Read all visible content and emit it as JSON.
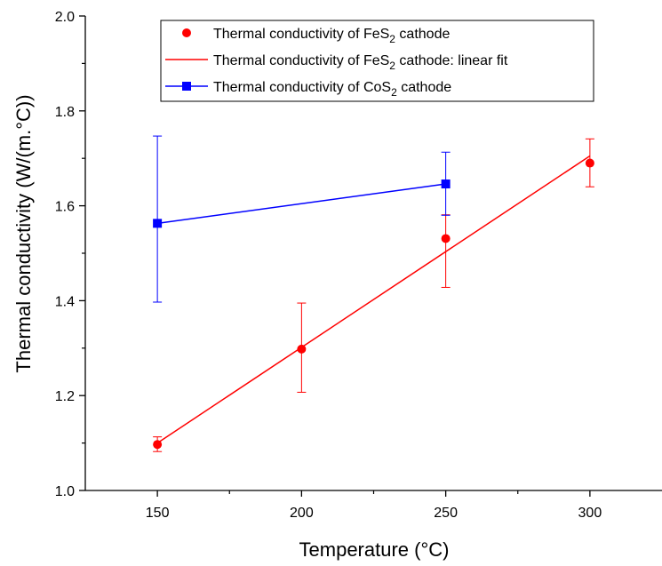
{
  "chart_data": {
    "type": "scatter",
    "xlabel": "Temperature (°C)",
    "ylabel": "Thermal conductivity (W/(m.°C))",
    "xlim": [
      125,
      325
    ],
    "ylim": [
      1.0,
      2.0
    ],
    "x_ticks": [
      "150",
      "200",
      "250",
      "300"
    ],
    "y_ticks": [
      "1.0",
      "1.2",
      "1.4",
      "1.6",
      "1.8",
      "2.0"
    ],
    "grid": false,
    "legend_position": "top",
    "series": [
      {
        "name": "Thermal conductivity of FeS2 cathode",
        "legend": {
          "base": "Thermal conductivity of FeS",
          "sub": "2",
          "suffix": " cathode"
        },
        "style": "marker",
        "marker": "circle",
        "color": "#ff0000",
        "points": [
          {
            "x": 150,
            "y": 1.097,
            "err_low": 1.082,
            "err_high": 1.113
          },
          {
            "x": 200,
            "y": 1.298,
            "err_low": 1.207,
            "err_high": 1.395
          },
          {
            "x": 250,
            "y": 1.531,
            "err_low": 1.428,
            "err_high": 1.581
          },
          {
            "x": 300,
            "y": 1.69,
            "err_low": 1.64,
            "err_high": 1.741
          }
        ]
      },
      {
        "name": "Thermal conductivity of FeS2 cathode: linear fit",
        "legend": {
          "base": "Thermal conductivity of FeS",
          "sub": "2",
          "suffix": " cathode: linear fit"
        },
        "style": "line",
        "color": "#ff0000",
        "points": [
          {
            "x": 150,
            "y": 1.1
          },
          {
            "x": 300,
            "y": 1.705
          }
        ]
      },
      {
        "name": "Thermal conductivity of CoS2 cathode",
        "legend": {
          "base": "Thermal conductivity of CoS",
          "sub": "2",
          "suffix": " cathode"
        },
        "style": "line-marker",
        "marker": "square",
        "color": "#0000ff",
        "points": [
          {
            "x": 150,
            "y": 1.563,
            "err_low": 1.397,
            "err_high": 1.747
          },
          {
            "x": 250,
            "y": 1.646,
            "err_low": 1.58,
            "err_high": 1.713
          }
        ]
      }
    ]
  }
}
